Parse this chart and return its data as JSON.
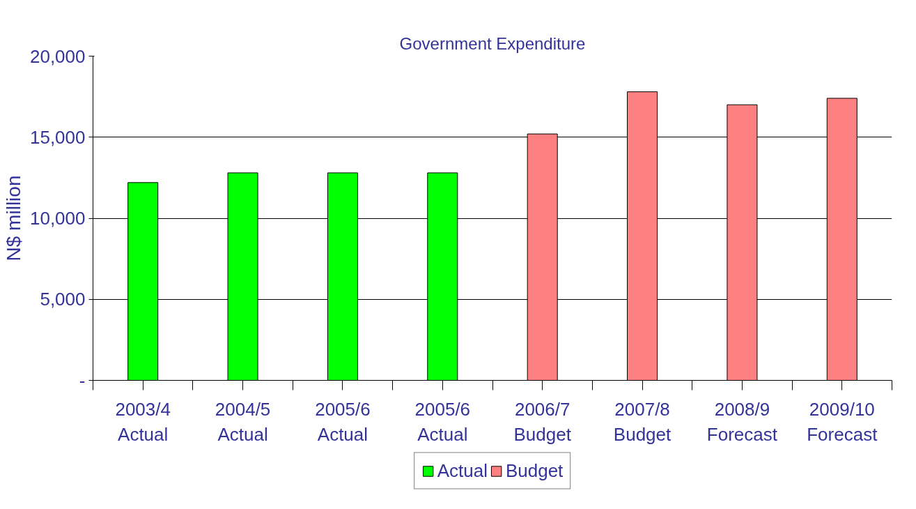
{
  "chart_data": {
    "type": "bar",
    "title": "Government Expenditure",
    "ylabel": "N$ million",
    "categories": [
      "2003/4\nActual",
      "2004/5\nActual",
      "2005/6\nActual",
      "2005/6\nActual",
      "2006/7\nBudget",
      "2007/8\nBudget",
      "2008/9\nForecast",
      "2009/10\nForecast"
    ],
    "series": [
      {
        "name": "Actual",
        "color": "#00ff00",
        "values": [
          12200,
          12800,
          12800,
          12800,
          null,
          null,
          null,
          null
        ]
      },
      {
        "name": "Budget",
        "color": "#ff8080",
        "values": [
          null,
          null,
          null,
          null,
          15200,
          17800,
          17000,
          17400
        ]
      }
    ],
    "ylim": [
      0,
      20000
    ],
    "yticks": [
      {
        "value": 0,
        "label": "-"
      },
      {
        "value": 5000,
        "label": "5,000"
      },
      {
        "value": 10000,
        "label": "10,000"
      },
      {
        "value": 15000,
        "label": "15,000"
      },
      {
        "value": 20000,
        "label": "20,000"
      }
    ],
    "grid": "y",
    "legend": "bottom"
  }
}
